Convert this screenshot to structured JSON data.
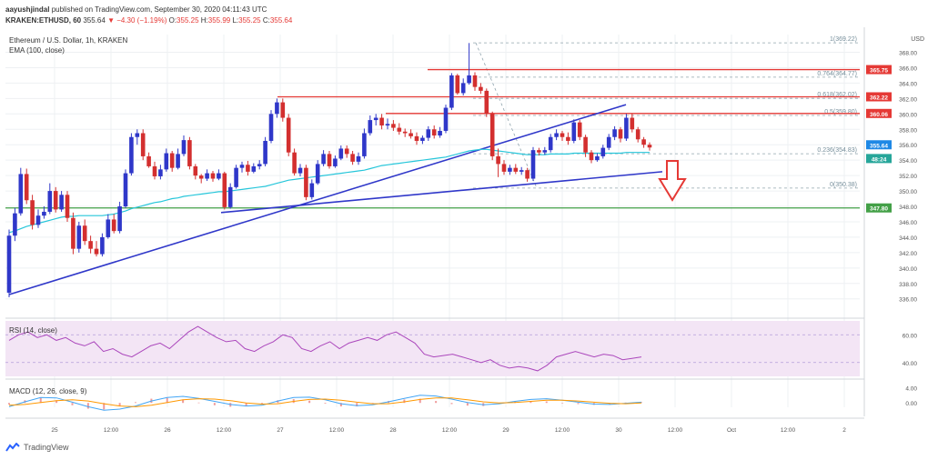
{
  "header": {
    "author": "aayushjindal",
    "published": "published on TradingView.com, September 30, 2020 04:11:43 UTC",
    "symbol": "KRAKEN:ETHUSD, 60",
    "last": "355.64",
    "change": "▼ −4.30 (−1.19%)",
    "o_label": "O:",
    "o": "355.25",
    "h_label": "H:",
    "h": "355.99",
    "l_label": "L:",
    "l": "355.25",
    "c_label": "C:",
    "c": "355.64"
  },
  "chart_data": {
    "type": "candlestick",
    "title": "Ethereum / U.S. Dollar, 1h, KRAKEN",
    "indicator_label": "EMA (100, close)",
    "currency": "USD",
    "y_ticks": [
      336,
      338,
      340,
      342,
      344,
      346,
      348,
      350,
      352,
      354,
      356,
      358,
      360,
      362,
      364,
      366,
      368
    ],
    "ylim": [
      334.2,
      370.3
    ],
    "x_ticks": [
      "25",
      "12:00",
      "26",
      "12:00",
      "27",
      "12:00",
      "28",
      "12:00",
      "29",
      "12:00",
      "30",
      "12:00",
      "Oct",
      "12:00",
      "2"
    ],
    "candles": [
      [
        336.8,
        344.2,
        336.2,
        345
      ],
      [
        344.2,
        347.1,
        343.5,
        347.8
      ],
      [
        347.1,
        352.2,
        346.8,
        353
      ],
      [
        352.2,
        348.8,
        348.3,
        352.9
      ],
      [
        348.8,
        345.6,
        345,
        349.5
      ],
      [
        345.6,
        346.8,
        345.2,
        347.6
      ],
      [
        346.8,
        347.3,
        346.4,
        348
      ],
      [
        347.3,
        350,
        347,
        351
      ],
      [
        350,
        347.6,
        347.2,
        350.5
      ],
      [
        347.6,
        349.5,
        347.3,
        350
      ],
      [
        349.5,
        346.5,
        346,
        350
      ],
      [
        346.5,
        342.5,
        341.8,
        347.2
      ],
      [
        342.5,
        345.5,
        342,
        346
      ],
      [
        345.5,
        343.5,
        343,
        346.3
      ],
      [
        343.5,
        342.5,
        341.9,
        344.2
      ],
      [
        342.5,
        341.8,
        341.5,
        343.5
      ],
      [
        341.8,
        344,
        341.5,
        344.5
      ],
      [
        344,
        346.3,
        343.8,
        347
      ],
      [
        346.3,
        344.8,
        344.5,
        347
      ],
      [
        344.8,
        348,
        344.5,
        348.6
      ],
      [
        348,
        352.3,
        347.8,
        352.8
      ],
      [
        352.3,
        357,
        352,
        357.5
      ],
      [
        357,
        357.5,
        356,
        358
      ],
      [
        357.5,
        354.5,
        354,
        358
      ],
      [
        354.5,
        353.2,
        353,
        355
      ],
      [
        353.2,
        351.9,
        351.5,
        353.8
      ],
      [
        351.9,
        352.8,
        351.5,
        353.4
      ],
      [
        352.8,
        354.9,
        352.5,
        355.5
      ],
      [
        354.9,
        353,
        352.5,
        355.2
      ],
      [
        353,
        354.8,
        352.8,
        355.5
      ],
      [
        354.8,
        356.6,
        354.5,
        357.2
      ],
      [
        356.6,
        353.2,
        352.8,
        357
      ],
      [
        353.2,
        352,
        351.5,
        353.5
      ],
      [
        352,
        351.6,
        351,
        352.2
      ],
      [
        351.6,
        352.3,
        351.3,
        352.8
      ],
      [
        352.3,
        351.6,
        351.2,
        352.6
      ],
      [
        351.6,
        352.3,
        351.4,
        352.8
      ],
      [
        352.3,
        347.9,
        347.6,
        352.5
      ],
      [
        347.9,
        350.5,
        347.7,
        351
      ],
      [
        350.5,
        353,
        350.3,
        353.4
      ],
      [
        353,
        353.4,
        352.4,
        353.8
      ],
      [
        353.4,
        352.5,
        352,
        353.9
      ],
      [
        352.5,
        353.2,
        352.3,
        353.6
      ],
      [
        353.2,
        353.5,
        352.8,
        354
      ],
      [
        353.5,
        356.5,
        353.2,
        357
      ],
      [
        356.5,
        360,
        356.2,
        360.5
      ],
      [
        360,
        361.5,
        359.5,
        362
      ],
      [
        361.5,
        359.5,
        359,
        362
      ],
      [
        359.5,
        355,
        354.5,
        360
      ],
      [
        355,
        352.3,
        352,
        355.5
      ],
      [
        352.3,
        353,
        351.9,
        353.5
      ],
      [
        353,
        349.2,
        348.8,
        353.4
      ],
      [
        349.2,
        351,
        348.9,
        351.5
      ],
      [
        351,
        353.5,
        350.8,
        354
      ],
      [
        353.5,
        354.8,
        353.2,
        355.3
      ],
      [
        354.8,
        353.2,
        352.9,
        355.2
      ],
      [
        353.2,
        354.2,
        353,
        354.6
      ],
      [
        354.2,
        355.5,
        354,
        355.9
      ],
      [
        355.5,
        354.8,
        354.3,
        355.9
      ],
      [
        354.8,
        353.8,
        353.4,
        355.2
      ],
      [
        353.8,
        354.5,
        353.4,
        355
      ],
      [
        354.5,
        357.5,
        354.2,
        358.1
      ],
      [
        357.5,
        359.2,
        357.2,
        359.8
      ],
      [
        359.2,
        359.5,
        358.5,
        360
      ],
      [
        359.5,
        358.5,
        358,
        360
      ],
      [
        358.5,
        358.7,
        358,
        359.4
      ],
      [
        358.7,
        358.2,
        357.8,
        359.2
      ],
      [
        358.2,
        357.7,
        357.3,
        358.8
      ],
      [
        357.7,
        357.5,
        357,
        358.1
      ],
      [
        357.5,
        357.1,
        356.8,
        358
      ],
      [
        357.1,
        356.5,
        356,
        357.6
      ],
      [
        356.5,
        356.9,
        356.1,
        357.2
      ],
      [
        356.9,
        358,
        356.5,
        358.4
      ],
      [
        358,
        357.2,
        356.8,
        358.5
      ],
      [
        357.2,
        357.8,
        356.9,
        358.3
      ],
      [
        357.8,
        360.8,
        357.5,
        361.2
      ],
      [
        360.8,
        365,
        360.5,
        365.3
      ],
      [
        365,
        362.7,
        362.5,
        365.2
      ],
      [
        362.7,
        364,
        362.4,
        364.6
      ],
      [
        364,
        365,
        363.8,
        369.2
      ],
      [
        365,
        363.5,
        363,
        365.4
      ],
      [
        363.5,
        363,
        362.6,
        364
      ],
      [
        363,
        360,
        359.6,
        363.3
      ],
      [
        360,
        354.5,
        354,
        360.3
      ],
      [
        354.5,
        353.5,
        351.8,
        355.5
      ],
      [
        353.5,
        352.5,
        352.1,
        354
      ],
      [
        352.5,
        353,
        352.1,
        353.4
      ],
      [
        353,
        352.5,
        352.2,
        353.5
      ],
      [
        352.5,
        352.7,
        352.1,
        353.1
      ],
      [
        352.7,
        351.6,
        351.2,
        353
      ],
      [
        351.6,
        355.3,
        351.3,
        355.7
      ],
      [
        355.3,
        355,
        354.6,
        355.6
      ],
      [
        355,
        355.3,
        354.7,
        355.7
      ],
      [
        355.3,
        357,
        355,
        357.4
      ],
      [
        357,
        357.5,
        356.6,
        358
      ],
      [
        357.5,
        357,
        356.5,
        357.8
      ],
      [
        357,
        356.5,
        356,
        357.6
      ],
      [
        356.5,
        358.9,
        356.2,
        359.3
      ],
      [
        358.9,
        357,
        356.6,
        359.2
      ],
      [
        357,
        355,
        354.4,
        357.3
      ],
      [
        355,
        354,
        353.6,
        355.3
      ],
      [
        354,
        354.5,
        353.8,
        354.9
      ],
      [
        354.5,
        355.6,
        354.2,
        356
      ],
      [
        355.6,
        357,
        355.3,
        357.4
      ],
      [
        357,
        358,
        356.6,
        358.4
      ],
      [
        358,
        356.8,
        356.3,
        358.3
      ],
      [
        356.8,
        359.5,
        356.5,
        360
      ],
      [
        359.5,
        358,
        357.6,
        360
      ],
      [
        358,
        356.7,
        356.3,
        358.3
      ],
      [
        356.7,
        356,
        355.6,
        357
      ],
      [
        356,
        355.64,
        355.25,
        356.3
      ]
    ],
    "ema_100": [
      344.6,
      344.8,
      345.1,
      345.4,
      345.6,
      345.8,
      346.0,
      346.2,
      346.4,
      346.6,
      346.7,
      346.7,
      346.8,
      346.8,
      346.8,
      346.8,
      346.8,
      346.9,
      347.0,
      347.2,
      347.4,
      347.7,
      347.9,
      348.1,
      348.3,
      348.5,
      348.6,
      348.8,
      349.0,
      349.1,
      349.3,
      349.4,
      349.5,
      349.6,
      349.7,
      349.8,
      349.9,
      349.9,
      350.0,
      350.1,
      350.2,
      350.3,
      350.4,
      350.5,
      350.6,
      350.8,
      351.0,
      351.2,
      351.4,
      351.5,
      351.6,
      351.7,
      351.8,
      351.9,
      352.0,
      352.1,
      352.2,
      352.3,
      352.4,
      352.5,
      352.6,
      352.7,
      352.9,
      353.1,
      353.3,
      353.4,
      353.5,
      353.6,
      353.7,
      353.8,
      353.9,
      354.0,
      354.1,
      354.2,
      354.3,
      354.4,
      354.6,
      354.8,
      355.0,
      355.2,
      355.3,
      355.4,
      355.4,
      355.3,
      355.2,
      355.1,
      355.0,
      354.9,
      354.8,
      354.7,
      354.7,
      354.7,
      354.7,
      354.8,
      354.8,
      354.8,
      354.8,
      354.9,
      354.9,
      354.9,
      354.9,
      354.9,
      354.9,
      354.9,
      354.9,
      354.9,
      355.0,
      355.0,
      355.0,
      355.0,
      355.0
    ],
    "fib_levels": [
      {
        "ratio": "1",
        "price": 369.22,
        "label": "1(369.22)"
      },
      {
        "ratio": "0.764",
        "price": 364.77,
        "label": "0.764(364.77)"
      },
      {
        "ratio": "0.618",
        "price": 362.02,
        "label": "0.618(362.02)"
      },
      {
        "ratio": "0.5",
        "price": 359.8,
        "label": "0.5(359.80)"
      },
      {
        "ratio": "0.236",
        "price": 354.83,
        "label": "0.236(354.83)"
      },
      {
        "ratio": "0",
        "price": 350.38,
        "label": "0(350.38)"
      }
    ],
    "horizontal_levels": [
      {
        "price": 365.75,
        "label": "365.75",
        "color": "#e53935"
      },
      {
        "price": 362.22,
        "label": "362.22",
        "color": "#e53935"
      },
      {
        "price": 360.06,
        "label": "360.06",
        "color": "#e53935"
      },
      {
        "price": 347.8,
        "label": "347.80",
        "color": "#43a047"
      }
    ],
    "price_markers": [
      {
        "price": 355.64,
        "label": "355.64",
        "color": "#1e88e5"
      },
      {
        "price": 354.8,
        "label": "48:24",
        "color": "#26a69a"
      }
    ],
    "rsi": {
      "label": "RSI (14, close)",
      "ticks": [
        40.0,
        60.0
      ],
      "range": [
        30,
        70
      ],
      "band": [
        30,
        70
      ],
      "values": [
        56,
        60,
        62,
        58,
        60,
        56,
        58,
        54,
        52,
        55,
        48,
        50,
        46,
        44,
        48,
        52,
        54,
        50,
        56,
        62,
        66,
        62,
        58,
        55,
        56,
        50,
        48,
        52,
        55,
        60,
        58,
        50,
        48,
        52,
        55,
        50,
        54,
        56,
        58,
        56,
        60,
        62,
        58,
        54,
        46,
        44,
        45,
        46,
        44,
        42,
        40,
        42,
        38,
        36,
        37,
        36,
        34,
        38,
        44,
        46,
        48,
        46,
        44,
        46,
        45,
        42,
        43,
        44
      ]
    },
    "macd": {
      "label": "MACD (12, 26, close, 9)",
      "ticks": [
        4.0,
        0.0
      ],
      "range": [
        -3.5,
        5.5
      ],
      "macd": [
        -1.0,
        0.3,
        1.4,
        1.3,
        0.2,
        -1.0,
        -1.9,
        -1.6,
        -0.8,
        0.5,
        1.4,
        1.7,
        1.2,
        0.4,
        -0.4,
        -0.8,
        -0.6,
        0.5,
        1.4,
        1.5,
        0.8,
        -0.2,
        -0.7,
        -0.5,
        0.3,
        1.2,
        2.0,
        1.8,
        1.0,
        0.1,
        -0.5,
        -0.2,
        0.4,
        0.9,
        1.1,
        0.7,
        0.2,
        -0.3,
        -0.4,
        -0.1,
        0.2
      ],
      "signal": [
        -0.6,
        -0.4,
        0.1,
        0.6,
        0.8,
        0.5,
        -0.2,
        -0.8,
        -1.0,
        -0.6,
        0.1,
        0.8,
        1.1,
        1.0,
        0.6,
        0.0,
        -0.3,
        -0.2,
        0.4,
        0.9,
        1.0,
        0.7,
        0.2,
        -0.2,
        -0.2,
        0.3,
        0.9,
        1.3,
        1.3,
        0.8,
        0.3,
        0.0,
        0.1,
        0.4,
        0.7,
        0.7,
        0.5,
        0.2,
        -0.1,
        -0.2,
        0.0
      ]
    }
  }
}
